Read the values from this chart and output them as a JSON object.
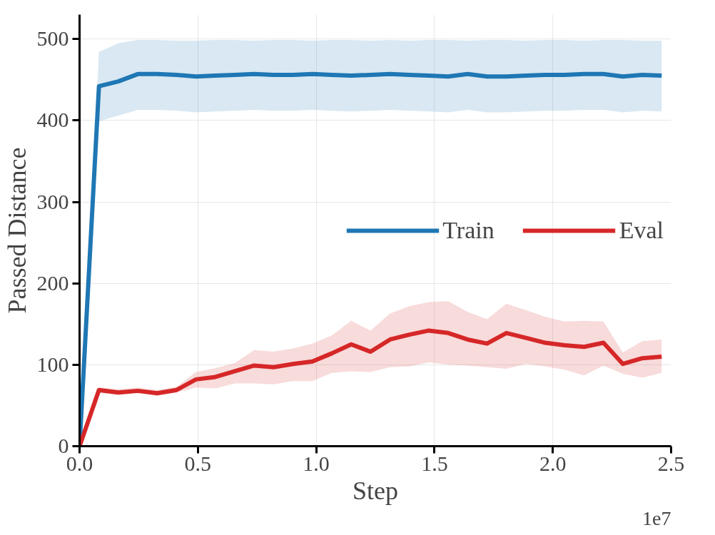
{
  "chart_data": {
    "type": "line",
    "xlabel": "Step",
    "ylabel": "Passed Distance",
    "annotations": [
      "1e7"
    ],
    "x": [
      0,
      0.082,
      0.164,
      0.246,
      0.328,
      0.41,
      0.492,
      0.574,
      0.656,
      0.738,
      0.82,
      0.902,
      0.984,
      1.066,
      1.148,
      1.23,
      1.312,
      1.394,
      1.476,
      1.558,
      1.64,
      1.722,
      1.804,
      1.886,
      1.968,
      2.05,
      2.132,
      2.214,
      2.296,
      2.378,
      2.46
    ],
    "series": [
      {
        "name": "Train",
        "color": "#1f77b4",
        "values": [
          0,
          442,
          448,
          457,
          457,
          456,
          454,
          455,
          456,
          457,
          456,
          456,
          457,
          456,
          455,
          456,
          457,
          456,
          455,
          454,
          457,
          454,
          454,
          455,
          456,
          456,
          457,
          457,
          454,
          456,
          455
        ],
        "lower": [
          0,
          399,
          406,
          413,
          413,
          412,
          410,
          411,
          412,
          413,
          412,
          412,
          413,
          412,
          411,
          412,
          413,
          412,
          411,
          410,
          413,
          410,
          410,
          411,
          412,
          412,
          413,
          413,
          410,
          412,
          411
        ],
        "upper": [
          0,
          484,
          495,
          499,
          499,
          498,
          498,
          499,
          499,
          498,
          499,
          499,
          498,
          499,
          499,
          498,
          499,
          498,
          499,
          499,
          498,
          499,
          499,
          498,
          499,
          499,
          498,
          499,
          499,
          498,
          498
        ]
      },
      {
        "name": "Eval",
        "color": "#d62728",
        "values": [
          0,
          69,
          66,
          68,
          65,
          69,
          82,
          85,
          92,
          99,
          97,
          101,
          104,
          114,
          125,
          116,
          131,
          137,
          142,
          139,
          131,
          126,
          139,
          133,
          127,
          124,
          122,
          127,
          101,
          108,
          110
        ],
        "lower": [
          0,
          65,
          63,
          65,
          62,
          66,
          72,
          71,
          77,
          77,
          76,
          80,
          80,
          90,
          92,
          91,
          97,
          98,
          103,
          100,
          99,
          97,
          95,
          101,
          98,
          94,
          87,
          99,
          89,
          84,
          90
        ],
        "upper": [
          0,
          72,
          70,
          72,
          69,
          73,
          91,
          96,
          102,
          118,
          116,
          120,
          126,
          136,
          154,
          142,
          163,
          172,
          177,
          178,
          165,
          156,
          175,
          167,
          159,
          153,
          154,
          153,
          115,
          129,
          131
        ]
      }
    ],
    "xlim": [
      0,
      2.5
    ],
    "ylim": [
      0,
      530
    ],
    "xticks": [
      {
        "value": 0,
        "label": "0.0"
      },
      0.5,
      {
        "value": 1,
        "label": "1.0"
      },
      1.5,
      {
        "value": 2,
        "label": "2.0"
      },
      2.5
    ],
    "yticks": [
      0,
      100,
      200,
      300,
      400,
      500
    ],
    "grid": true,
    "legend": "right",
    "line_style": "solid"
  }
}
